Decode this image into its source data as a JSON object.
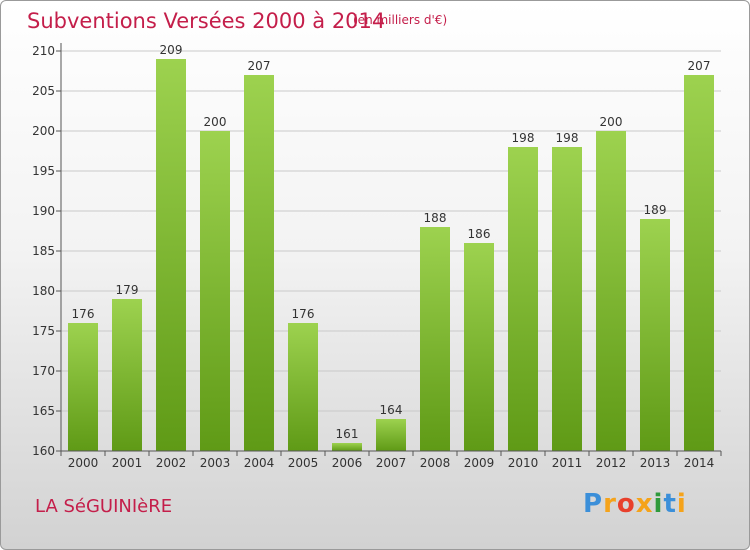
{
  "header": {
    "title": "Subventions Versées 2000 à 2014",
    "unit": "(en milliers d'€)"
  },
  "footer": {
    "place": "LA SéGUINIèRE",
    "logo": "Proxiti",
    "logo_colors": [
      "#3b8fd9",
      "#f5a31a",
      "#e8402c",
      "#f5a31a",
      "#2f9a3c",
      "#3b8fd9",
      "#f5a31a"
    ]
  },
  "colors": {
    "title": "#c41e4a",
    "bar_light": "#9dd24f",
    "bar_dark": "#5f9a16",
    "grid": "#c9c9c9",
    "axis": "#555555"
  },
  "chart_data": {
    "type": "bar",
    "categories": [
      "2000",
      "2001",
      "2002",
      "2003",
      "2004",
      "2005",
      "2006",
      "2007",
      "2008",
      "2009",
      "2010",
      "2011",
      "2012",
      "2013",
      "2014"
    ],
    "values": [
      176,
      179,
      209,
      200,
      207,
      176,
      161,
      164,
      188,
      186,
      198,
      198,
      200,
      189,
      207
    ],
    "yticks": [
      160,
      165,
      170,
      175,
      180,
      185,
      190,
      195,
      200,
      205,
      210
    ],
    "ylim": [
      160,
      210
    ],
    "grid": true
  }
}
